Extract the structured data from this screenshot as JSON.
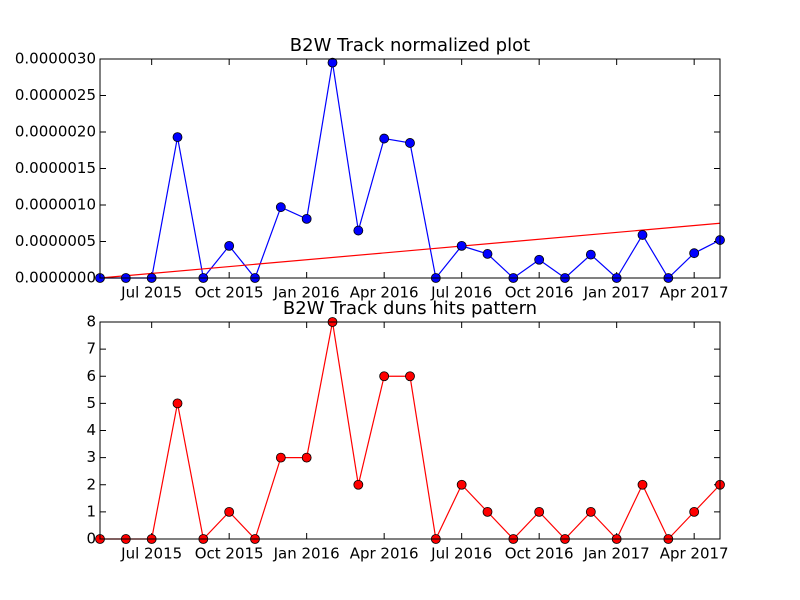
{
  "chart_data": [
    {
      "type": "line",
      "title": "B2W Track normalized plot",
      "x": [
        "2015-05",
        "2015-06",
        "2015-07",
        "2015-08",
        "2015-09",
        "2015-10",
        "2015-11",
        "2015-12",
        "2016-01",
        "2016-02",
        "2016-03",
        "2016-04",
        "2016-05",
        "2016-06",
        "2016-07",
        "2016-08",
        "2016-09",
        "2016-10",
        "2016-11",
        "2016-12",
        "2017-01",
        "2017-02",
        "2017-03",
        "2017-04",
        "2017-05"
      ],
      "series": [
        {
          "color": "#0000ff",
          "values": [
            0,
            0,
            0,
            1.93e-06,
            0,
            4.4e-07,
            0,
            9.7e-07,
            8.1e-07,
            2.95e-06,
            6.5e-07,
            1.91e-06,
            1.85e-06,
            0,
            4.4e-07,
            3.3e-07,
            0,
            2.5e-07,
            0,
            3.2e-07,
            0,
            5.9e-07,
            0,
            3.4e-07,
            5.2e-07
          ]
        }
      ],
      "trend": {
        "color": "#ff0000",
        "x": [
          "2015-05",
          "2017-05"
        ],
        "values": [
          0,
          7.5e-07
        ]
      },
      "xlim": [
        "2015-05",
        "2017-05"
      ],
      "xticks": [
        {
          "value": "2015-07",
          "label": "Jul 2015"
        },
        {
          "value": "2015-10",
          "label": "Oct 2015"
        },
        {
          "value": "2016-01",
          "label": "Jan 2016"
        },
        {
          "value": "2016-04",
          "label": "Apr 2016"
        },
        {
          "value": "2016-07",
          "label": "Jul 2016"
        },
        {
          "value": "2016-10",
          "label": "Oct 2016"
        },
        {
          "value": "2017-01",
          "label": "Jan 2017"
        },
        {
          "value": "2017-04",
          "label": "Apr 2017"
        }
      ],
      "ylim": [
        0,
        3e-06
      ],
      "yticks": [
        {
          "value": 0,
          "label": "0.0000000"
        },
        {
          "value": 5e-07,
          "label": "0.0000005"
        },
        {
          "value": 1e-06,
          "label": "0.0000010"
        },
        {
          "value": 1.5e-06,
          "label": "0.0000015"
        },
        {
          "value": 2e-06,
          "label": "0.0000020"
        },
        {
          "value": 2.5e-06,
          "label": "0.0000025"
        },
        {
          "value": 3e-06,
          "label": "0.0000030"
        }
      ]
    },
    {
      "type": "line",
      "title": "B2W Track duns hits pattern",
      "x": [
        "2015-05",
        "2015-06",
        "2015-07",
        "2015-08",
        "2015-09",
        "2015-10",
        "2015-11",
        "2015-12",
        "2016-01",
        "2016-02",
        "2016-03",
        "2016-04",
        "2016-05",
        "2016-06",
        "2016-07",
        "2016-08",
        "2016-09",
        "2016-10",
        "2016-11",
        "2016-12",
        "2017-01",
        "2017-02",
        "2017-03",
        "2017-04",
        "2017-05"
      ],
      "series": [
        {
          "color": "#ff0000",
          "values": [
            0,
            0,
            0,
            5,
            0,
            1,
            0,
            3,
            3,
            8,
            2,
            6,
            6,
            0,
            2,
            1,
            0,
            1,
            0,
            1,
            0,
            2,
            0,
            1,
            2
          ]
        }
      ],
      "xlim": [
        "2015-05",
        "2017-05"
      ],
      "xticks": [
        {
          "value": "2015-07",
          "label": "Jul 2015"
        },
        {
          "value": "2015-10",
          "label": "Oct 2015"
        },
        {
          "value": "2016-01",
          "label": "Jan 2016"
        },
        {
          "value": "2016-04",
          "label": "Apr 2016"
        },
        {
          "value": "2016-07",
          "label": "Jul 2016"
        },
        {
          "value": "2016-10",
          "label": "Oct 2016"
        },
        {
          "value": "2017-01",
          "label": "Jan 2017"
        },
        {
          "value": "2017-04",
          "label": "Apr 2017"
        }
      ],
      "ylim": [
        0,
        8
      ],
      "yticks": [
        0,
        1,
        2,
        3,
        4,
        5,
        6,
        7,
        8
      ]
    }
  ]
}
